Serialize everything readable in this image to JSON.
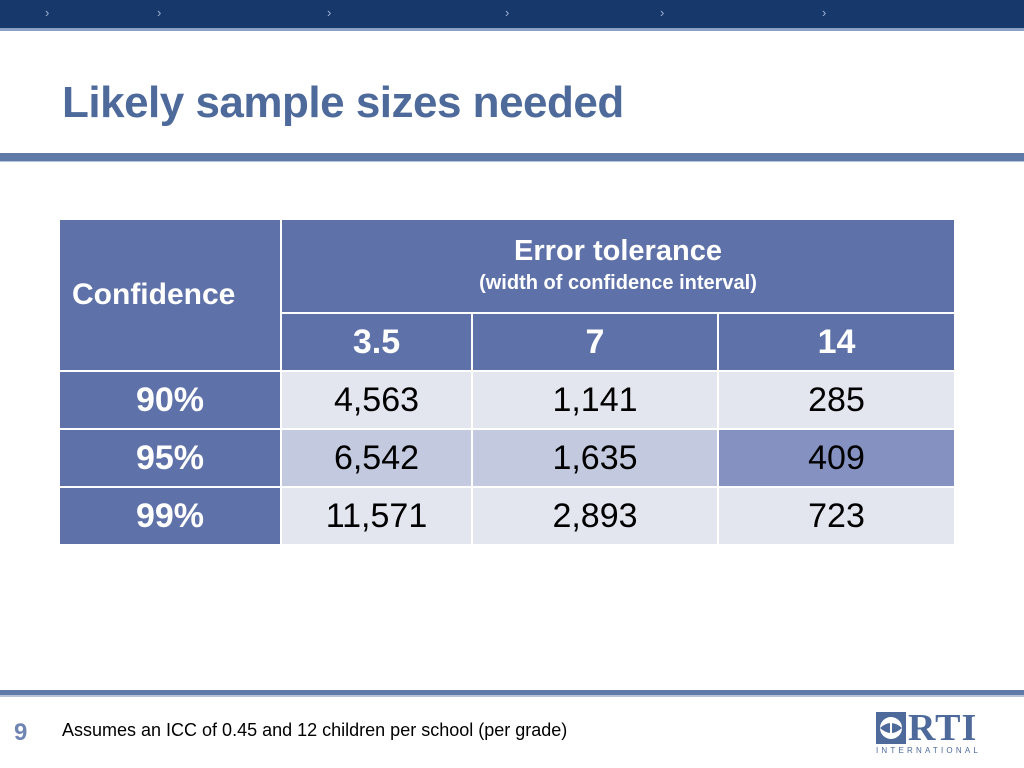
{
  "slide": {
    "title": "Likely sample sizes needed",
    "page_number": "9",
    "footnote": "Assumes an ICC of 0.45 and 12 children per school (per grade)"
  },
  "table": {
    "corner_header": "Confidence",
    "group_header": "Error tolerance",
    "group_subheader": "(width of confidence interval)",
    "columns": [
      "3.5",
      "7",
      "14"
    ],
    "rows": [
      {
        "label": "90%",
        "values": [
          "4,563",
          "1,141",
          "285"
        ]
      },
      {
        "label": "95%",
        "values": [
          "6,542",
          "1,635",
          "409"
        ]
      },
      {
        "label": "99%",
        "values": [
          "11,571",
          "2,893",
          "723"
        ]
      }
    ]
  },
  "logo": {
    "name": "RTI",
    "subtitle": "INTERNATIONAL"
  },
  "colors": {
    "header_blue": "#5e71a8",
    "title_blue": "#4d6a9b",
    "top_bar": "#17386b"
  }
}
